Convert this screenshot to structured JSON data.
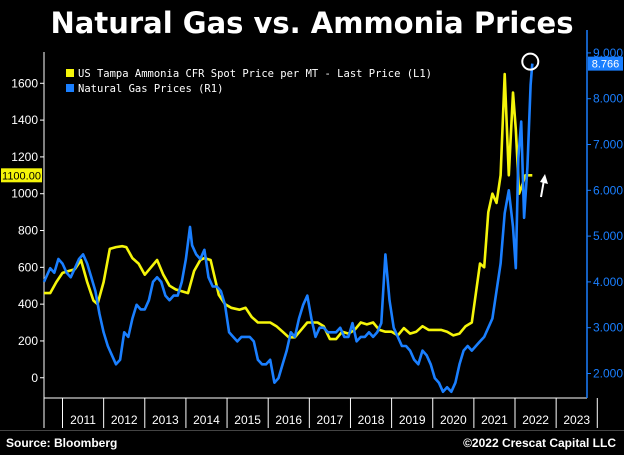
{
  "title": "Natural Gas vs. Ammonia Prices",
  "footer": {
    "source": "Source: Bloomberg",
    "copyright": "©2022 Crescat Capital LLC"
  },
  "chart_data": {
    "type": "line",
    "x_ticks": [
      "2011",
      "2012",
      "2013",
      "2014",
      "2015",
      "2016",
      "2017",
      "2018",
      "2019",
      "2020",
      "2021",
      "2022",
      "2023"
    ],
    "x_range": [
      2010.55,
      2023.75
    ],
    "y_left": {
      "range": [
        -110,
        1770
      ],
      "ticks": [
        "0",
        "200",
        "400",
        "600",
        "800",
        "1000",
        "1200",
        "1400",
        "1600"
      ],
      "tick_values": [
        0,
        200,
        400,
        600,
        800,
        1000,
        1200,
        1400,
        1600
      ],
      "last_value_label": "1100.00",
      "last_value": 1100
    },
    "y_right": {
      "range": [
        1.465,
        9.02
      ],
      "ticks": [
        "2.000",
        "3.000",
        "4.000",
        "5.000",
        "6.000",
        "7.000",
        "8.000",
        "9.000"
      ],
      "tick_values": [
        2,
        3,
        4,
        5,
        6,
        7,
        8,
        9
      ],
      "last_value_label": "8.766",
      "last_value": 8.766
    },
    "legend_position": "top-left",
    "colors": {
      "ammonia": "#f5f50a",
      "gas": "#1a7fff",
      "annotation": "#ffffff"
    },
    "series": [
      {
        "name": "US Tampa Ammonia CFR Spot Price per MT - Last Price (L1)",
        "axis": "left",
        "x": [
          2010.55,
          2010.7,
          2010.85,
          2011.0,
          2011.15,
          2011.3,
          2011.45,
          2011.6,
          2011.75,
          2011.85,
          2012.0,
          2012.15,
          2012.3,
          2012.45,
          2012.55,
          2012.7,
          2012.85,
          2013.0,
          2013.15,
          2013.3,
          2013.45,
          2013.6,
          2013.75,
          2013.9,
          2014.05,
          2014.2,
          2014.35,
          2014.45,
          2014.6,
          2014.8,
          2014.95,
          2015.1,
          2015.3,
          2015.45,
          2015.6,
          2015.75,
          2015.9,
          2016.05,
          2016.2,
          2016.35,
          2016.5,
          2016.65,
          2016.8,
          2016.95,
          2017.05,
          2017.2,
          2017.35,
          2017.5,
          2017.65,
          2017.8,
          2017.95,
          2018.1,
          2018.25,
          2018.4,
          2018.55,
          2018.7,
          2018.85,
          2019.0,
          2019.15,
          2019.3,
          2019.45,
          2019.6,
          2019.75,
          2019.9,
          2020.05,
          2020.2,
          2020.35,
          2020.5,
          2020.65,
          2020.8,
          2020.95,
          2021.05,
          2021.15,
          2021.25,
          2021.35,
          2021.45,
          2021.55,
          2021.65,
          2021.75,
          2021.85,
          2021.95,
          2022.02,
          2022.1,
          2022.18,
          2022.25,
          2022.35,
          2022.42
        ],
        "y": [
          460,
          460,
          520,
          570,
          580,
          590,
          640,
          520,
          420,
          400,
          520,
          700,
          710,
          715,
          710,
          650,
          620,
          560,
          600,
          640,
          560,
          500,
          480,
          470,
          460,
          580,
          640,
          650,
          640,
          450,
          400,
          380,
          370,
          380,
          330,
          300,
          300,
          300,
          280,
          250,
          220,
          220,
          260,
          300,
          300,
          300,
          280,
          210,
          210,
          250,
          240,
          260,
          300,
          290,
          300,
          260,
          250,
          250,
          230,
          270,
          240,
          250,
          280,
          260,
          260,
          260,
          250,
          230,
          240,
          280,
          300,
          460,
          620,
          600,
          900,
          1000,
          950,
          1100,
          1650,
          1100,
          1550,
          1350,
          1000,
          1050,
          1100,
          1100,
          1100
        ]
      },
      {
        "name": "Natural Gas Prices (R1)",
        "axis": "right",
        "x": [
          2010.55,
          2010.7,
          2010.8,
          2010.9,
          2011.0,
          2011.1,
          2011.2,
          2011.3,
          2011.4,
          2011.5,
          2011.6,
          2011.7,
          2011.8,
          2011.9,
          2012.0,
          2012.1,
          2012.2,
          2012.3,
          2012.4,
          2012.5,
          2012.6,
          2012.7,
          2012.8,
          2012.9,
          2013.0,
          2013.1,
          2013.2,
          2013.3,
          2013.4,
          2013.5,
          2013.6,
          2013.7,
          2013.8,
          2013.9,
          2014.0,
          2014.1,
          2014.15,
          2014.25,
          2014.35,
          2014.45,
          2014.55,
          2014.65,
          2014.75,
          2014.85,
          2014.95,
          2015.05,
          2015.15,
          2015.25,
          2015.35,
          2015.45,
          2015.55,
          2015.65,
          2015.75,
          2015.85,
          2015.95,
          2016.05,
          2016.15,
          2016.25,
          2016.35,
          2016.45,
          2016.55,
          2016.65,
          2016.75,
          2016.85,
          2016.95,
          2017.05,
          2017.15,
          2017.25,
          2017.35,
          2017.45,
          2017.55,
          2017.65,
          2017.75,
          2017.85,
          2017.95,
          2018.05,
          2018.15,
          2018.25,
          2018.35,
          2018.45,
          2018.55,
          2018.65,
          2018.75,
          2018.85,
          2018.95,
          2019.05,
          2019.15,
          2019.25,
          2019.35,
          2019.45,
          2019.55,
          2019.65,
          2019.75,
          2019.85,
          2019.95,
          2020.05,
          2020.15,
          2020.25,
          2020.35,
          2020.45,
          2020.55,
          2020.65,
          2020.75,
          2020.85,
          2020.95,
          2021.05,
          2021.15,
          2021.25,
          2021.35,
          2021.45,
          2021.55,
          2021.65,
          2021.75,
          2021.85,
          2021.95,
          2022.02,
          2022.08,
          2022.15,
          2022.22,
          2022.3,
          2022.38,
          2022.42
        ],
        "y": [
          4.0,
          4.3,
          4.2,
          4.5,
          4.4,
          4.2,
          4.1,
          4.3,
          4.5,
          4.6,
          4.4,
          4.1,
          3.8,
          3.3,
          2.9,
          2.6,
          2.4,
          2.2,
          2.3,
          2.9,
          2.8,
          3.2,
          3.5,
          3.4,
          3.4,
          3.6,
          4.0,
          4.1,
          4.0,
          3.7,
          3.6,
          3.7,
          3.7,
          4.0,
          4.5,
          5.2,
          4.8,
          4.6,
          4.5,
          4.7,
          4.1,
          3.9,
          3.9,
          3.8,
          3.5,
          2.9,
          2.8,
          2.7,
          2.8,
          2.8,
          2.8,
          2.7,
          2.3,
          2.2,
          2.2,
          2.3,
          1.8,
          1.9,
          2.2,
          2.5,
          2.9,
          2.8,
          3.2,
          3.5,
          3.7,
          3.2,
          2.8,
          3.0,
          3.0,
          2.9,
          2.9,
          2.9,
          3.0,
          2.8,
          2.8,
          3.1,
          2.7,
          2.8,
          2.8,
          2.9,
          2.8,
          2.9,
          3.1,
          4.6,
          3.6,
          3.0,
          2.8,
          2.6,
          2.6,
          2.5,
          2.3,
          2.2,
          2.5,
          2.4,
          2.2,
          1.9,
          1.8,
          1.6,
          1.7,
          1.6,
          1.8,
          2.2,
          2.5,
          2.6,
          2.5,
          2.6,
          2.7,
          2.8,
          3.0,
          3.2,
          3.8,
          4.4,
          5.5,
          6.0,
          5.2,
          4.3,
          6.7,
          7.5,
          5.4,
          6.5,
          8.3,
          8.766
        ]
      }
    ]
  }
}
